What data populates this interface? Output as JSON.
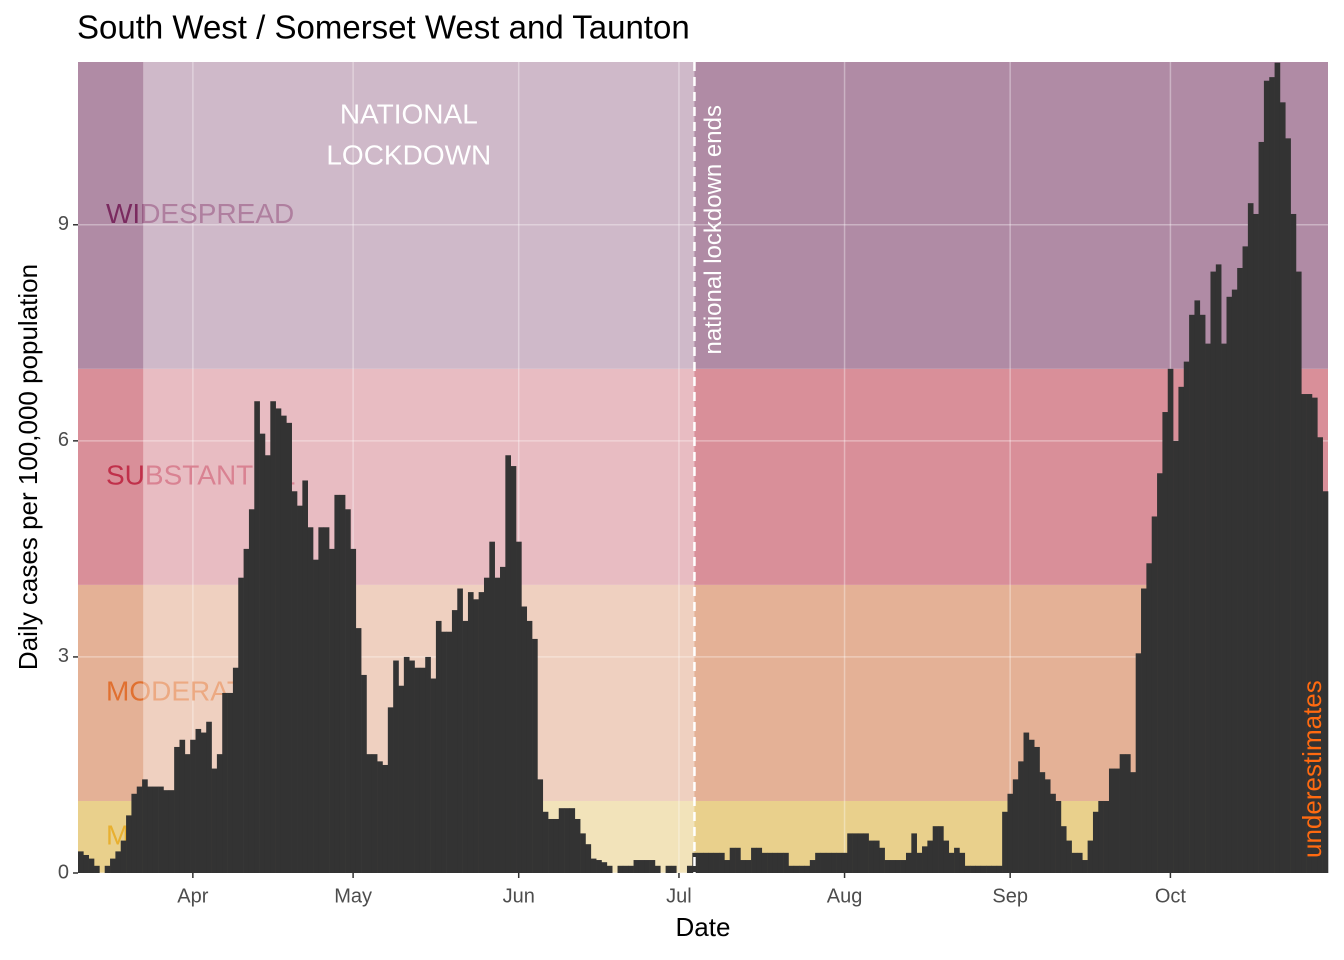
{
  "chart_data": {
    "type": "bar",
    "title": "South West / Somerset West and Taunton",
    "x_label": "Date",
    "y_label": "Daily cases per 100,000 population",
    "color": "#333333",
    "xlim": [
      -21.5,
      212.5
    ],
    "ylim": [
      0,
      11.26
    ],
    "xticks": [
      {
        "value": 0,
        "label": "Apr"
      },
      {
        "value": 30,
        "label": "May"
      },
      {
        "value": 61,
        "label": "Jun"
      },
      {
        "value": 91,
        "label": "Jul"
      },
      {
        "value": 122,
        "label": "Aug"
      },
      {
        "value": 153,
        "label": "Sep"
      },
      {
        "value": 183,
        "label": "Oct"
      }
    ],
    "yticks": [
      0,
      3,
      6,
      9
    ],
    "grid": true,
    "bands": [
      {
        "label": "MINIMAL",
        "range": [
          0,
          1
        ],
        "color": "#e9d08c",
        "text_color": "#e8b030"
      },
      {
        "label": "MODERATE",
        "range": [
          1,
          4
        ],
        "color": "#e4b196",
        "text_color": "#e07030"
      },
      {
        "label": "SUBSTANTIAL",
        "range": [
          4,
          7
        ],
        "color": "#d98f99",
        "text_color": "#c0304a"
      },
      {
        "label": "WIDESPREAD",
        "range": [
          7,
          11.26
        ],
        "color": "#b08ba5",
        "text_color": "#7a2a5f"
      }
    ],
    "lockdown": {
      "label": [
        "NATIONAL",
        "LOCKDOWN"
      ],
      "start": -9.3,
      "end": 93.9
    },
    "lockdown_end": {
      "x": 93.9,
      "label": "national lockdown ends"
    },
    "note": "underestimates",
    "x": [
      -21,
      -20,
      -19,
      -18,
      -17,
      -16,
      -15,
      -14,
      -13,
      -12,
      -11,
      -10,
      -9,
      -8,
      -7,
      -6,
      -5,
      -4,
      -3,
      -2,
      -1,
      0,
      1,
      2,
      3,
      4,
      5,
      6,
      7,
      8,
      9,
      10,
      11,
      12,
      13,
      14,
      15,
      16,
      17,
      18,
      19,
      20,
      21,
      22,
      23,
      24,
      25,
      26,
      27,
      28,
      29,
      30,
      31,
      32,
      33,
      34,
      35,
      36,
      37,
      38,
      39,
      40,
      41,
      42,
      43,
      44,
      45,
      46,
      47,
      48,
      49,
      50,
      51,
      52,
      53,
      54,
      55,
      56,
      57,
      58,
      59,
      60,
      61,
      62,
      63,
      64,
      65,
      66,
      67,
      68,
      69,
      70,
      71,
      72,
      73,
      74,
      75,
      76,
      77,
      78,
      79,
      80,
      81,
      82,
      83,
      84,
      85,
      86,
      87,
      88,
      89,
      90,
      91,
      92,
      93,
      94,
      95,
      96,
      97,
      98,
      99,
      100,
      101,
      102,
      103,
      104,
      105,
      106,
      107,
      108,
      109,
      110,
      111,
      112,
      113,
      114,
      115,
      116,
      117,
      118,
      119,
      120,
      121,
      122,
      123,
      124,
      125,
      126,
      127,
      128,
      129,
      130,
      131,
      132,
      133,
      134,
      135,
      136,
      137,
      138,
      139,
      140,
      141,
      142,
      143,
      144,
      145,
      146,
      147,
      148,
      149,
      150,
      151,
      152,
      153,
      154,
      155,
      156,
      157,
      158,
      159,
      160,
      161,
      162,
      163,
      164,
      165,
      166,
      167,
      168,
      169,
      170,
      171,
      172,
      173,
      174,
      175,
      176,
      177,
      178,
      179,
      180,
      181,
      182,
      183,
      184,
      185,
      186,
      187,
      188,
      189,
      190,
      191,
      192,
      193,
      194,
      195,
      196,
      197,
      198,
      199,
      200,
      201,
      202,
      203,
      204,
      205,
      206,
      207,
      208,
      209,
      210,
      211,
      212
    ],
    "values": [
      0.3,
      0.25,
      0.2,
      0.1,
      0,
      0.1,
      0.2,
      0.3,
      0.45,
      0.8,
      1.1,
      1.2,
      1.3,
      1.2,
      1.2,
      1.2,
      1.15,
      1.15,
      1.75,
      1.85,
      1.65,
      1.85,
      2.0,
      1.95,
      2.1,
      1.45,
      1.65,
      2.5,
      2.5,
      2.85,
      4.1,
      4.5,
      5.05,
      6.55,
      6.1,
      5.8,
      6.55,
      6.45,
      6.35,
      6.25,
      5.3,
      5.1,
      5.45,
      4.8,
      4.35,
      4.8,
      4.8,
      4.5,
      5.25,
      5.25,
      5.05,
      4.5,
      3.4,
      2.75,
      1.65,
      1.65,
      1.55,
      1.5,
      2.3,
      2.95,
      2.6,
      3.0,
      2.95,
      2.85,
      2.85,
      3.0,
      2.7,
      3.5,
      3.35,
      3.35,
      3.65,
      3.95,
      3.5,
      3.9,
      3.8,
      3.9,
      4.1,
      4.6,
      4.1,
      4.25,
      5.8,
      5.65,
      4.6,
      3.7,
      3.5,
      3.25,
      1.3,
      0.85,
      0.75,
      0.75,
      0.9,
      0.9,
      0.9,
      0.75,
      0.55,
      0.4,
      0.2,
      0.18,
      0.15,
      0.1,
      0,
      0.1,
      0.1,
      0.1,
      0.18,
      0.18,
      0.18,
      0.18,
      0.1,
      0,
      0.1,
      0.1,
      0,
      0,
      0.1,
      0.28,
      0.28,
      0.28,
      0.28,
      0.28,
      0.28,
      0.18,
      0.35,
      0.35,
      0.18,
      0.18,
      0.35,
      0.35,
      0.28,
      0.28,
      0.28,
      0.28,
      0.28,
      0.1,
      0.1,
      0.1,
      0.1,
      0.18,
      0.28,
      0.28,
      0.28,
      0.28,
      0.28,
      0.28,
      0.55,
      0.55,
      0.55,
      0.55,
      0.45,
      0.45,
      0.35,
      0.18,
      0.18,
      0.18,
      0.18,
      0.28,
      0.55,
      0.28,
      0.37,
      0.45,
      0.65,
      0.65,
      0.45,
      0.28,
      0.35,
      0.28,
      0.1,
      0.1,
      0.1,
      0.1,
      0.1,
      0.1,
      0.1,
      0.85,
      1.1,
      1.3,
      1.55,
      1.95,
      1.85,
      1.75,
      1.4,
      1.3,
      1.1,
      1.0,
      0.65,
      0.45,
      0.28,
      0.28,
      0.18,
      0.45,
      0.85,
      1.0,
      1.0,
      1.45,
      1.45,
      1.65,
      1.65,
      1.4,
      3.05,
      3.95,
      4.3,
      4.95,
      5.55,
      6.4,
      7.0,
      6.0,
      6.75,
      7.1,
      7.75,
      7.95,
      7.75,
      7.35,
      8.35,
      8.45,
      7.35,
      8.0,
      8.1,
      8.4,
      8.7,
      9.3,
      9.15,
      10.15,
      11.0,
      11.05,
      11.25,
      10.7,
      10.2,
      9.15,
      8.35,
      6.65,
      6.65,
      6.6,
      6.05,
      5.3
    ]
  }
}
